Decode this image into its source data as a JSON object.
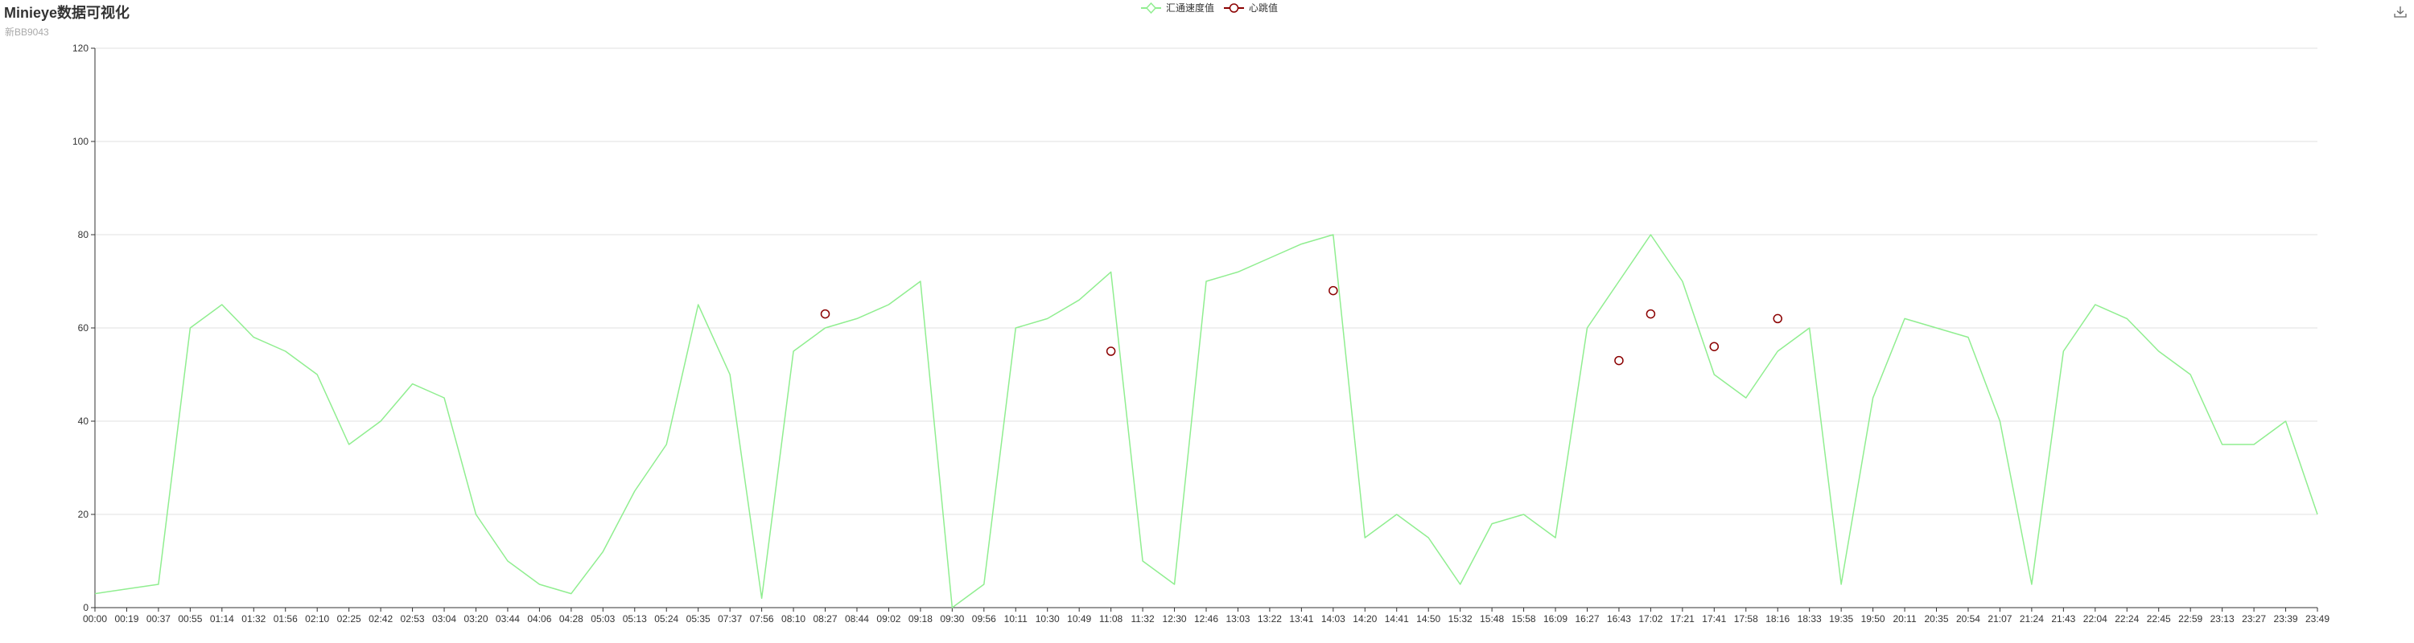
{
  "header": {
    "title": "Minieye数据可视化",
    "subtitle": "新BB9043"
  },
  "legend": {
    "items": [
      {
        "label": "汇通速度值",
        "color": "#90ee90",
        "marker": "hollow-diamond"
      },
      {
        "label": "心跳值",
        "color": "#8b0000",
        "marker": "hollow-circle"
      }
    ]
  },
  "toolbox": {
    "icon": "download-icon"
  },
  "chart_data": {
    "type": "line",
    "title": "Minieye数据可视化",
    "subtitle": "新BB9043",
    "ylim": [
      0,
      120
    ],
    "yticks": [
      0,
      20,
      40,
      60,
      80,
      100,
      120
    ],
    "grid": true,
    "legend_position": "top-center",
    "categories": [
      "00:00",
      "00:19",
      "00:37",
      "00:55",
      "01:14",
      "01:32",
      "01:56",
      "02:10",
      "02:25",
      "02:42",
      "02:53",
      "03:04",
      "03:20",
      "03:44",
      "04:06",
      "04:28",
      "05:03",
      "05:13",
      "05:24",
      "05:35",
      "07:37",
      "07:56",
      "08:10",
      "08:27",
      "08:44",
      "09:02",
      "09:18",
      "09:30",
      "09:56",
      "10:11",
      "10:30",
      "10:49",
      "11:08",
      "11:32",
      "12:30",
      "12:46",
      "13:03",
      "13:22",
      "13:41",
      "14:03",
      "14:20",
      "14:41",
      "14:50",
      "15:32",
      "15:48",
      "15:58",
      "16:09",
      "16:27",
      "16:43",
      "17:02",
      "17:21",
      "17:41",
      "17:58",
      "18:16",
      "18:33",
      "19:35",
      "19:50",
      "20:11",
      "20:35",
      "20:54",
      "21:07",
      "21:24",
      "21:43",
      "22:04",
      "22:24",
      "22:45",
      "22:59",
      "23:13",
      "23:27",
      "23:39",
      "23:49"
    ],
    "series": [
      {
        "name": "汇通速度值",
        "color": "#90ee90",
        "values": [
          3,
          4,
          5,
          60,
          65,
          58,
          55,
          50,
          35,
          40,
          48,
          45,
          20,
          10,
          5,
          3,
          12,
          25,
          35,
          65,
          50,
          2,
          55,
          60,
          62,
          65,
          70,
          0,
          5,
          60,
          62,
          66,
          72,
          10,
          5,
          70,
          72,
          75,
          78,
          80,
          15,
          20,
          15,
          5,
          18,
          20,
          15,
          60,
          70,
          80,
          70,
          50,
          45,
          55,
          60,
          5,
          45,
          62,
          60,
          58,
          40,
          5,
          55,
          65,
          62,
          55,
          50,
          35,
          35,
          40,
          20
        ]
      },
      {
        "name": "心跳值",
        "color": "#8b0000",
        "points": [
          {
            "x": "08:27",
            "y": 63
          },
          {
            "x": "11:08",
            "y": 55
          },
          {
            "x": "14:03",
            "y": 68
          },
          {
            "x": "16:43",
            "y": 53
          },
          {
            "x": "17:02",
            "y": 63
          },
          {
            "x": "17:41",
            "y": 56
          },
          {
            "x": "18:16",
            "y": 62
          }
        ]
      }
    ]
  }
}
